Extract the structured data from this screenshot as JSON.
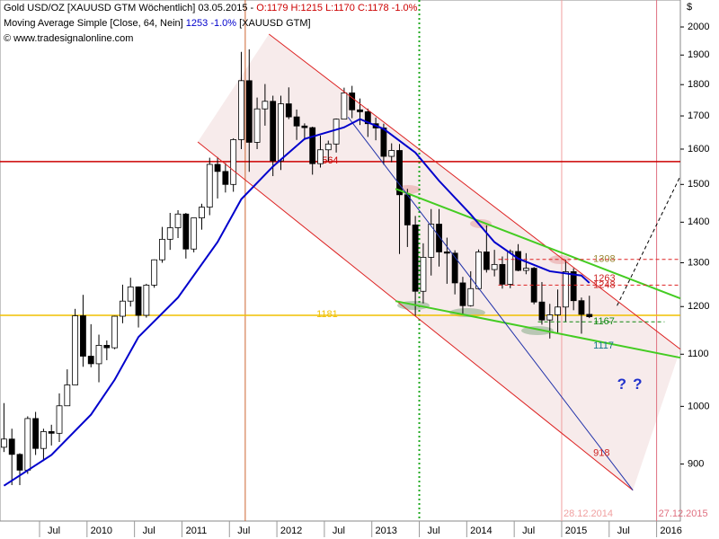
{
  "header": {
    "title": "Gold USD/OZ [XAUUSD GTM  Wöchentlich] 03.05.2015 - ",
    "ohlc": "O:1179 H:1215 L:1170 C:1178 -1.0%",
    "ma_title": "Moving Average Simple [Close, 64, Nein] ",
    "ma_value": "1253 -1.0%",
    "ma_source": " [XAUUSD GTM]",
    "copyright": "© www.tradesignalonline.com",
    "currency": "$"
  },
  "chart_data": {
    "type": "candlestick",
    "log_scale": true,
    "ylim": [
      811,
      2101
    ],
    "yticks": [
      900,
      1000,
      1100,
      1200,
      1300,
      1400,
      1500,
      1600,
      1700,
      1800,
      1900,
      2000
    ],
    "xlim": [
      "2009-02",
      "2016-04"
    ],
    "xticks": [
      {
        "value": "2009-07",
        "label": "Jul"
      },
      {
        "value": "2010-01",
        "label": "2010"
      },
      {
        "value": "2010-07",
        "label": "Jul"
      },
      {
        "value": "2011-01",
        "label": "2011"
      },
      {
        "value": "2011-07",
        "label": "Jul"
      },
      {
        "value": "2012-01",
        "label": "2012"
      },
      {
        "value": "2012-07",
        "label": "Jul"
      },
      {
        "value": "2013-01",
        "label": "2013"
      },
      {
        "value": "2013-07",
        "label": "Jul"
      },
      {
        "value": "2014-01",
        "label": "2014"
      },
      {
        "value": "2014-07",
        "label": "Jul"
      },
      {
        "value": "2015-01",
        "label": "2015"
      },
      {
        "value": "2015-07",
        "label": "Jul"
      },
      {
        "value": "2016-01",
        "label": "2016"
      }
    ],
    "x": [
      "2009-02",
      "2009-03",
      "2009-04",
      "2009-05",
      "2009-06",
      "2009-07",
      "2009-08",
      "2009-09",
      "2009-10",
      "2009-11",
      "2009-12",
      "2010-01",
      "2010-02",
      "2010-03",
      "2010-04",
      "2010-05",
      "2010-06",
      "2010-07",
      "2010-08",
      "2010-09",
      "2010-10",
      "2010-11",
      "2010-12",
      "2011-01",
      "2011-02",
      "2011-03",
      "2011-04",
      "2011-05",
      "2011-06",
      "2011-07",
      "2011-08",
      "2011-09",
      "2011-10",
      "2011-11",
      "2011-12",
      "2012-01",
      "2012-02",
      "2012-03",
      "2012-04",
      "2012-05",
      "2012-06",
      "2012-07",
      "2012-08",
      "2012-09",
      "2012-10",
      "2012-11",
      "2012-12",
      "2013-01",
      "2013-02",
      "2013-03",
      "2013-04",
      "2013-05",
      "2013-06",
      "2013-07",
      "2013-08",
      "2013-09",
      "2013-10",
      "2013-11",
      "2013-12",
      "2014-01",
      "2014-02",
      "2014-03",
      "2014-04",
      "2014-05",
      "2014-06",
      "2014-07",
      "2014-08",
      "2014-09",
      "2014-10",
      "2014-11",
      "2014-12",
      "2015-01",
      "2015-02",
      "2015-03",
      "2015-04"
    ],
    "open": [
      928,
      942,
      916,
      890,
      978,
      926,
      955,
      952,
      1001,
      1040,
      1180,
      1096,
      1081,
      1118,
      1113,
      1179,
      1212,
      1244,
      1181,
      1248,
      1307,
      1357,
      1386,
      1421,
      1333,
      1411,
      1439,
      1556,
      1536,
      1500,
      1628,
      1813,
      1620,
      1722,
      1746,
      1566,
      1738,
      1697,
      1669,
      1664,
      1558,
      1598,
      1615,
      1690,
      1773,
      1719,
      1713,
      1676,
      1663,
      1579,
      1596,
      1472,
      1393,
      1234,
      1313,
      1395,
      1326,
      1323,
      1253,
      1202,
      1240,
      1326,
      1284,
      1296,
      1250,
      1327,
      1282,
      1287,
      1210,
      1171,
      1182,
      1199,
      1279,
      1213,
      1183
    ],
    "high": [
      1006,
      960,
      918,
      982,
      990,
      960,
      967,
      1024,
      1070,
      1195,
      1226,
      1162,
      1140,
      1128,
      1180,
      1249,
      1265,
      1245,
      1251,
      1308,
      1388,
      1424,
      1431,
      1424,
      1411,
      1448,
      1575,
      1577,
      1560,
      1632,
      1911,
      1920,
      1758,
      1802,
      1764,
      1764,
      1791,
      1720,
      1677,
      1667,
      1640,
      1625,
      1692,
      1790,
      1796,
      1755,
      1723,
      1695,
      1676,
      1617,
      1615,
      1488,
      1416,
      1347,
      1434,
      1434,
      1361,
      1330,
      1267,
      1280,
      1332,
      1392,
      1331,
      1315,
      1332,
      1345,
      1323,
      1290,
      1255,
      1206,
      1238,
      1307,
      1287,
      1220,
      1224
    ],
    "low": [
      920,
      866,
      866,
      884,
      915,
      905,
      931,
      937,
      1001,
      1040,
      1075,
      1074,
      1045,
      1088,
      1110,
      1164,
      1200,
      1155,
      1176,
      1242,
      1300,
      1331,
      1360,
      1310,
      1325,
      1381,
      1418,
      1462,
      1478,
      1480,
      1600,
      1535,
      1600,
      1670,
      1523,
      1540,
      1690,
      1627,
      1627,
      1527,
      1547,
      1565,
      1590,
      1690,
      1693,
      1672,
      1636,
      1626,
      1555,
      1562,
      1321,
      1338,
      1180,
      1207,
      1270,
      1291,
      1251,
      1227,
      1182,
      1200,
      1238,
      1277,
      1268,
      1240,
      1241,
      1280,
      1273,
      1205,
      1161,
      1132,
      1142,
      1167,
      1192,
      1142,
      1175
    ],
    "close": [
      942,
      916,
      890,
      978,
      926,
      955,
      952,
      1001,
      1040,
      1180,
      1096,
      1081,
      1118,
      1113,
      1179,
      1212,
      1244,
      1181,
      1248,
      1307,
      1357,
      1386,
      1421,
      1333,
      1411,
      1439,
      1556,
      1536,
      1500,
      1628,
      1813,
      1620,
      1722,
      1746,
      1566,
      1738,
      1697,
      1669,
      1664,
      1558,
      1598,
      1615,
      1690,
      1773,
      1719,
      1713,
      1676,
      1663,
      1579,
      1596,
      1472,
      1393,
      1234,
      1313,
      1395,
      1326,
      1323,
      1253,
      1202,
      1240,
      1326,
      1284,
      1296,
      1250,
      1327,
      1282,
      1287,
      1210,
      1171,
      1182,
      1199,
      1279,
      1213,
      1183,
      1178
    ],
    "moving_average": {
      "color": "#0000cc",
      "x": [
        "2009-02",
        "2009-08",
        "2010-01",
        "2010-04",
        "2010-07",
        "2010-12",
        "2011-05",
        "2011-08",
        "2011-12",
        "2012-04",
        "2012-09",
        "2012-11",
        "2013-02",
        "2013-06",
        "2013-09",
        "2014-01",
        "2014-04",
        "2014-07",
        "2014-11",
        "2015-03",
        "2015-04"
      ],
      "values": [
        865,
        915,
        985,
        1050,
        1135,
        1220,
        1350,
        1460,
        1550,
        1630,
        1665,
        1690,
        1660,
        1590,
        1510,
        1420,
        1350,
        1310,
        1280,
        1270,
        1253
      ]
    },
    "hlines": [
      {
        "value": 1564,
        "color": "#cc0000",
        "label_x": "2012-06"
      },
      {
        "value": 1181,
        "color": "#f0c000",
        "label_x": "2012-06"
      }
    ],
    "trendlines": [
      {
        "x": [
          "2011-12",
          "2016-04"
        ],
        "values": [
          1974,
          1110
        ],
        "color": "#dd2222",
        "dash": false
      },
      {
        "x": [
          "2011-03",
          "2015-10"
        ],
        "values": [
          1621,
          858
        ],
        "color": "#dd2222",
        "dash": false
      },
      {
        "x": [
          "2013-04",
          "2016-04"
        ],
        "values": [
          1488,
          1218
        ],
        "color": "#44cc22",
        "dash": false
      },
      {
        "x": [
          "2013-04",
          "2016-04"
        ],
        "values": [
          1212,
          1093
        ],
        "color": "#44cc22",
        "dash": false
      },
      {
        "x": [
          "2012-10",
          "2015-10"
        ],
        "values": [
          1696,
          858
        ],
        "color": "#2233aa",
        "dash": false
      },
      {
        "x": [
          "2015-08",
          "2016-04"
        ],
        "values": [
          1202,
          1523
        ],
        "color": "#000000",
        "dash": true
      },
      {
        "x": [
          "2014-05",
          "2016-04"
        ],
        "values": [
          1308,
          1308
        ],
        "color": "#dd2222",
        "dash": true
      },
      {
        "x": [
          "2014-05",
          "2016-04"
        ],
        "values": [
          1248,
          1248
        ],
        "color": "#dd2222",
        "dash": true
      },
      {
        "x": [
          "2014-10",
          "2016-02"
        ],
        "values": [
          1167,
          1167
        ],
        "color": "#118811",
        "dash": true
      }
    ],
    "vlines": [
      {
        "x": "2011-09",
        "color": "#cc6633",
        "dash": false
      },
      {
        "x": "2013-07",
        "color": "#22aa22",
        "dash": true
      },
      {
        "x": "2015-01",
        "color": "#f0a0a0",
        "dash": false,
        "label": "28.12.2014"
      },
      {
        "x": "2016-01",
        "color": "#e07080",
        "dash": false,
        "label": "27.12.2015"
      }
    ],
    "levels": [
      {
        "value": 1308,
        "color": "#998833",
        "x": "2015-05"
      },
      {
        "value": 1263,
        "color": "#cc2222",
        "x": "2015-05"
      },
      {
        "value": 1248,
        "color": "#cc2222",
        "x": "2015-05"
      },
      {
        "value": 1167,
        "color": "#118811",
        "x": "2015-05"
      },
      {
        "value": 1117,
        "color": "#117788",
        "x": "2015-05"
      },
      {
        "value": 918,
        "color": "#cc2222",
        "x": "2015-05"
      }
    ],
    "annotations": [
      {
        "text": "?",
        "x": "2015-08",
        "value": 1040,
        "color": "#2233cc"
      },
      {
        "text": "?",
        "x": "2015-10",
        "value": 1040,
        "color": "#2233cc"
      }
    ]
  }
}
